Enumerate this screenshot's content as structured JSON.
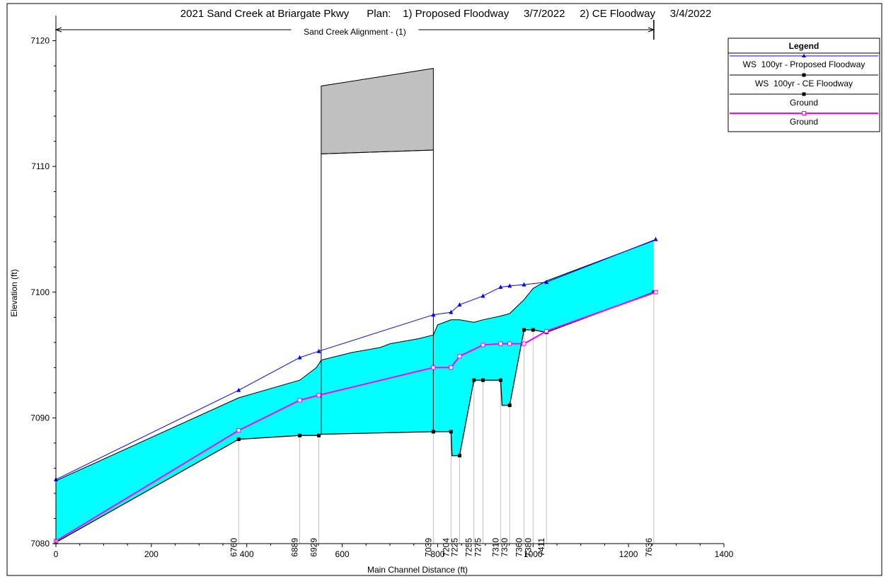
{
  "chart_data": {
    "type": "line",
    "title": "2021 Sand Creek at Briargate Pkwy      Plan:    1) Proposed Floodway     3/7/2022     2) CE Floodway     3/4/2022",
    "alignment_label": "Sand Creek Alignment - (1)",
    "alignment_range": [
      0,
      1253
    ],
    "xlabel": "Main Channel Distance (ft)",
    "ylabel": "Elevation (ft)",
    "xlim": [
      0,
      1400
    ],
    "ylim": [
      7080,
      7122
    ],
    "x_ticks": [
      0,
      200,
      400,
      600,
      800,
      1000,
      1200,
      1400
    ],
    "y_ticks": [
      7080,
      7090,
      7100,
      7110,
      7120
    ],
    "grid": false,
    "legend_position": "top-right",
    "legend": {
      "title": "Legend",
      "entries": [
        {
          "label": "WS  100yr - Proposed Floodway",
          "color": "#0000ff",
          "marker": "triangle"
        },
        {
          "label": "WS  100yr - CE Floodway",
          "color": "#000000",
          "marker": "square"
        },
        {
          "label": "Ground",
          "color": "#000000",
          "marker": "square"
        },
        {
          "label": "Ground",
          "color": "#ff00ff",
          "marker": "square"
        }
      ]
    },
    "colors": {
      "proposed_ws": "#0000ff",
      "ce_ground": "#000000",
      "proposed_ground": "#ff00ff",
      "water_fill": "#00ffff",
      "bridge_fill": "#c0c0c0",
      "station_line": "#c0c0c0"
    },
    "stations": [
      {
        "label": "6760",
        "x": 383
      },
      {
        "label": "6889",
        "x": 511
      },
      {
        "label": "6929",
        "x": 551
      },
      {
        "label": "7039",
        "x": 791
      },
      {
        "label": "7204",
        "x": 828
      },
      {
        "label": "7225",
        "x": 846
      },
      {
        "label": "7255",
        "x": 876
      },
      {
        "label": "7275",
        "x": 895
      },
      {
        "label": "7310",
        "x": 932
      },
      {
        "label": "7330",
        "x": 951
      },
      {
        "label": "7360",
        "x": 981
      },
      {
        "label": "7380",
        "x": 1000
      },
      {
        "label": "7411",
        "x": 1028
      },
      {
        "label": "7636",
        "x": 1253
      }
    ],
    "bridge": {
      "upstream_x": 791,
      "downstream_x": 556,
      "low_chord": [
        [
          556,
          7111.0
        ],
        [
          791,
          7111.3
        ]
      ],
      "high_chord": [
        [
          556,
          7116.4
        ],
        [
          791,
          7117.8
        ]
      ]
    },
    "series": [
      {
        "name": "WS  100yr - Proposed Floodway",
        "x": [
          0,
          383,
          511,
          551,
          791,
          828,
          846,
          895,
          932,
          951,
          981,
          1028,
          1257
        ],
        "values": [
          7085.1,
          7092.2,
          7094.8,
          7095.3,
          7098.2,
          7098.4,
          7099.0,
          7099.7,
          7100.4,
          7100.5,
          7100.6,
          7100.8,
          7104.2
        ]
      },
      {
        "name": "WS  100yr - CE Floodway",
        "x": [
          0,
          383,
          511,
          546,
          556,
          620,
          680,
          700,
          760,
          791,
          800,
          828,
          846,
          876,
          895,
          932,
          951,
          981,
          1000,
          1028,
          1253
        ],
        "values": [
          7085.0,
          7091.6,
          7093.0,
          7094.0,
          7094.6,
          7095.2,
          7095.6,
          7095.9,
          7096.3,
          7096.6,
          7097.4,
          7097.8,
          7097.8,
          7097.6,
          7097.8,
          7098.1,
          7098.3,
          7099.4,
          7100.3,
          7100.9,
          7104.1
        ]
      },
      {
        "name": "Ground",
        "x": [
          0,
          383,
          511,
          551,
          556,
          791,
          800,
          828,
          830,
          846,
          876,
          881,
          895,
          932,
          935,
          951,
          981,
          988,
          1000,
          1028,
          1253
        ],
        "values": [
          7080.1,
          7088.3,
          7088.6,
          7088.6,
          7088.7,
          7088.9,
          7088.9,
          7088.9,
          7087.0,
          7087.0,
          7093.0,
          7093.0,
          7093.0,
          7093.0,
          7091.0,
          7091.0,
          7097.0,
          7097.0,
          7097.0,
          7096.8,
          7100.0
        ]
      },
      {
        "name": "Ground",
        "x": [
          0,
          383,
          511,
          551,
          791,
          828,
          846,
          895,
          932,
          951,
          981,
          1028,
          1257
        ],
        "values": [
          7080.2,
          7089.0,
          7091.4,
          7091.8,
          7094.0,
          7094.0,
          7094.9,
          7095.8,
          7095.9,
          7095.9,
          7095.9,
          7096.9,
          7100.0
        ]
      }
    ]
  }
}
